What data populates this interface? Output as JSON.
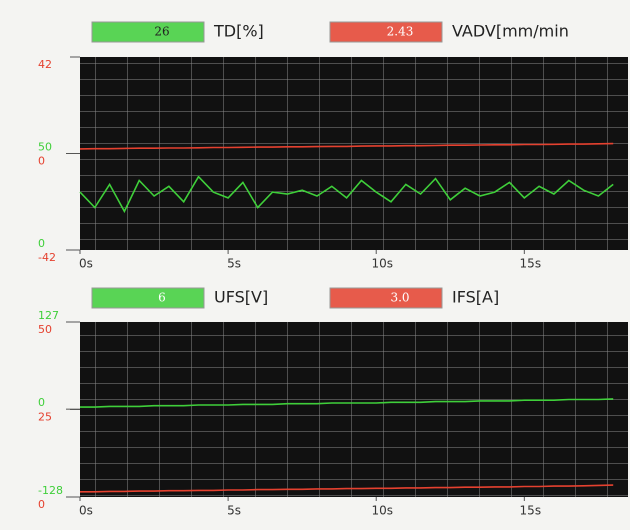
{
  "chart_data": [
    {
      "type": "line",
      "grid": true,
      "x": [
        0,
        0.5,
        1,
        1.5,
        2,
        2.5,
        3,
        3.5,
        4,
        4.5,
        5,
        5.5,
        6,
        6.5,
        7,
        7.5,
        8,
        8.5,
        9,
        9.5,
        10,
        10.5,
        11,
        11.5,
        12,
        12.5,
        13,
        13.5,
        14,
        14.5,
        15,
        15.5,
        16,
        16.5,
        17,
        17.5,
        18
      ],
      "xlim": [
        0,
        18.5
      ],
      "xticks": [
        {
          "value": 0,
          "label": "0s"
        },
        {
          "value": 5,
          "label": "5s"
        },
        {
          "value": 10,
          "label": "10s"
        },
        {
          "value": 15,
          "label": "15s"
        }
      ],
      "ylim": [
        0,
        100
      ],
      "yticks": [
        0,
        50
      ],
      "y2lim": [
        -42,
        42
      ],
      "y2ticks": [
        -42,
        0,
        42
      ],
      "series": [
        {
          "name": "TD[%]",
          "readout": "26",
          "color": "#3fcf3a",
          "values": [
            30,
            22,
            34,
            20,
            36,
            28,
            33,
            25,
            38,
            30,
            27,
            35,
            22,
            30,
            29,
            31,
            28,
            33,
            27,
            36,
            30,
            25,
            34,
            29,
            37,
            26,
            32,
            28,
            30,
            35,
            27,
            33,
            29,
            36,
            31,
            28,
            34
          ]
        },
        {
          "name": "VADV[mm/min",
          "readout": "2.43",
          "color": "#e5412f",
          "axis": "y2",
          "values": [
            2.0,
            2.1,
            2.1,
            2.2,
            2.3,
            2.3,
            2.4,
            2.4,
            2.5,
            2.6,
            2.6,
            2.7,
            2.8,
            2.8,
            2.9,
            2.9,
            3.0,
            3.1,
            3.1,
            3.2,
            3.3,
            3.3,
            3.4,
            3.4,
            3.5,
            3.6,
            3.6,
            3.7,
            3.8,
            3.8,
            3.9,
            3.9,
            4.0,
            4.1,
            4.1,
            4.2,
            4.3
          ]
        }
      ]
    },
    {
      "type": "line",
      "grid": true,
      "x": [
        0,
        0.5,
        1,
        1.5,
        2,
        2.5,
        3,
        3.5,
        4,
        4.5,
        5,
        5.5,
        6,
        6.5,
        7,
        7.5,
        8,
        8.5,
        9,
        9.5,
        10,
        10.5,
        11,
        11.5,
        12,
        12.5,
        13,
        13.5,
        14,
        14.5,
        15,
        15.5,
        16,
        16.5,
        17,
        17.5,
        18
      ],
      "xlim": [
        0,
        18.5
      ],
      "xticks": [
        {
          "value": 0,
          "label": "0s"
        },
        {
          "value": 5,
          "label": "5s"
        },
        {
          "value": 10,
          "label": "10s"
        },
        {
          "value": 15,
          "label": "15s"
        }
      ],
      "ylim": [
        -128,
        127
      ],
      "yticks": [
        -128,
        0,
        127
      ],
      "y2lim": [
        0,
        50
      ],
      "y2ticks": [
        0,
        25,
        50
      ],
      "series": [
        {
          "name": "UFS[V]",
          "readout": "6",
          "color": "#3fcf3a",
          "values": [
            3,
            3,
            4,
            4,
            4,
            5,
            5,
            5,
            6,
            6,
            6,
            7,
            7,
            7,
            8,
            8,
            8,
            9,
            9,
            9,
            9,
            10,
            10,
            10,
            11,
            11,
            11,
            12,
            12,
            12,
            13,
            13,
            13,
            14,
            14,
            14,
            15
          ]
        },
        {
          "name": "IFS[A]",
          "readout": "3.0",
          "color": "#e5412f",
          "axis": "y2",
          "values": [
            1.5,
            1.5,
            1.6,
            1.6,
            1.7,
            1.7,
            1.8,
            1.8,
            1.9,
            1.9,
            2.0,
            2.0,
            2.1,
            2.1,
            2.2,
            2.2,
            2.3,
            2.3,
            2.4,
            2.4,
            2.5,
            2.5,
            2.6,
            2.6,
            2.7,
            2.7,
            2.8,
            2.8,
            2.9,
            2.9,
            3.0,
            3.0,
            3.1,
            3.1,
            3.2,
            3.3,
            3.4
          ]
        }
      ]
    }
  ]
}
